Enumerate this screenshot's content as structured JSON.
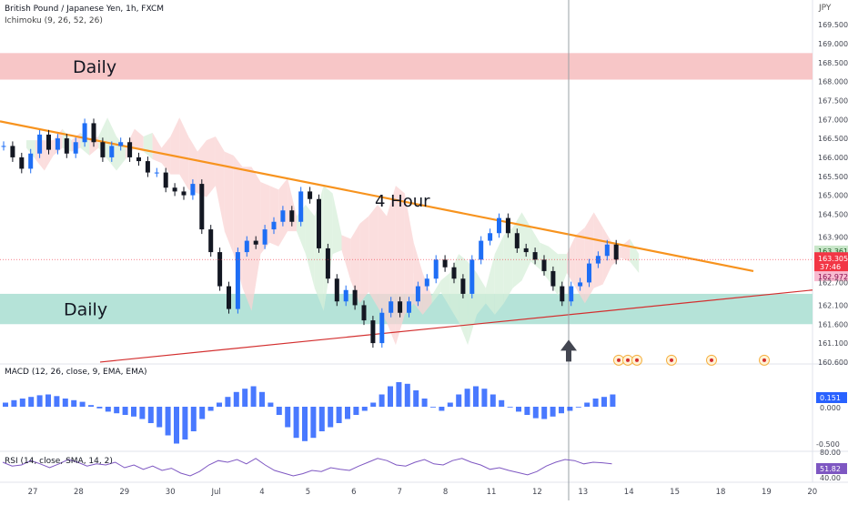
{
  "chart_data": {
    "type": "line",
    "title": "British Pound / Japanese Yen, 1h, FXCM",
    "indicator": "Ichimoku (9, 26, 52, 26)",
    "currency": "JPY",
    "x_ticks": [
      "27",
      "28",
      "29",
      "30",
      "Jul",
      "4",
      "5",
      "6",
      "7",
      "8",
      "11",
      "12",
      "13",
      "14",
      "15",
      "18",
      "19",
      "20"
    ],
    "price_ticks": [
      169.5,
      169.0,
      168.5,
      168.0,
      167.5,
      167.0,
      166.5,
      166.0,
      165.5,
      165.0,
      164.5,
      163.9,
      163.361,
      163.305,
      162.972,
      162.7,
      162.1,
      161.6,
      161.1,
      160.6
    ],
    "price_tick_labels": [
      "169.500",
      "169.000",
      "168.500",
      "168.000",
      "167.500",
      "167.000",
      "166.500",
      "166.000",
      "165.500",
      "165.000",
      "164.500",
      "163.900",
      "163.361",
      "163.305",
      "162.972",
      "162.700",
      "162.100",
      "161.600",
      "161.100",
      "160.600"
    ],
    "last_price": "163.305",
    "countdown": "37:46",
    "ylim": [
      160.55,
      170.15
    ],
    "zones": [
      {
        "label": "Daily",
        "from": 168.05,
        "to": 168.75,
        "color": "#f7c6c7"
      },
      {
        "label": "Daily",
        "from": 161.6,
        "to": 162.4,
        "color": "#b5e3d8"
      }
    ],
    "annotations": {
      "trend_label": "4 Hour"
    },
    "price_series": [
      {
        "x": 0,
        "y": 166.3
      },
      {
        "x": 1,
        "y": 166.0
      },
      {
        "x": 2,
        "y": 165.7
      },
      {
        "x": 3,
        "y": 166.1
      },
      {
        "x": 4,
        "y": 166.6
      },
      {
        "x": 5,
        "y": 166.2
      },
      {
        "x": 6,
        "y": 166.5
      },
      {
        "x": 7,
        "y": 166.1
      },
      {
        "x": 8,
        "y": 166.4
      },
      {
        "x": 9,
        "y": 166.9
      },
      {
        "x": 10,
        "y": 166.4
      },
      {
        "x": 11,
        "y": 166.0
      },
      {
        "x": 12,
        "y": 166.3
      },
      {
        "x": 13,
        "y": 166.4
      },
      {
        "x": 14,
        "y": 166.0
      },
      {
        "x": 15,
        "y": 165.9
      },
      {
        "x": 16,
        "y": 165.6
      },
      {
        "x": 17,
        "y": 165.6
      },
      {
        "x": 18,
        "y": 165.2
      },
      {
        "x": 19,
        "y": 165.1
      },
      {
        "x": 20,
        "y": 165.0
      },
      {
        "x": 21,
        "y": 165.3
      },
      {
        "x": 22,
        "y": 164.1
      },
      {
        "x": 23,
        "y": 163.5
      },
      {
        "x": 24,
        "y": 162.6
      },
      {
        "x": 25,
        "y": 162.0
      },
      {
        "x": 26,
        "y": 163.5
      },
      {
        "x": 27,
        "y": 163.8
      },
      {
        "x": 28,
        "y": 163.7
      },
      {
        "x": 29,
        "y": 164.1
      },
      {
        "x": 30,
        "y": 164.3
      },
      {
        "x": 31,
        "y": 164.6
      },
      {
        "x": 32,
        "y": 164.3
      },
      {
        "x": 33,
        "y": 165.1
      },
      {
        "x": 34,
        "y": 164.9
      },
      {
        "x": 35,
        "y": 163.6
      },
      {
        "x": 36,
        "y": 162.8
      },
      {
        "x": 37,
        "y": 162.2
      },
      {
        "x": 38,
        "y": 162.5
      },
      {
        "x": 39,
        "y": 162.1
      },
      {
        "x": 40,
        "y": 161.7
      },
      {
        "x": 41,
        "y": 161.1
      },
      {
        "x": 42,
        "y": 161.9
      },
      {
        "x": 43,
        "y": 162.2
      },
      {
        "x": 44,
        "y": 161.9
      },
      {
        "x": 45,
        "y": 162.2
      },
      {
        "x": 46,
        "y": 162.6
      },
      {
        "x": 47,
        "y": 162.8
      },
      {
        "x": 48,
        "y": 163.3
      },
      {
        "x": 49,
        "y": 163.1
      },
      {
        "x": 50,
        "y": 162.8
      },
      {
        "x": 51,
        "y": 162.4
      },
      {
        "x": 52,
        "y": 163.3
      },
      {
        "x": 53,
        "y": 163.8
      },
      {
        "x": 54,
        "y": 164.0
      },
      {
        "x": 55,
        "y": 164.4
      },
      {
        "x": 56,
        "y": 164.0
      },
      {
        "x": 57,
        "y": 163.6
      },
      {
        "x": 58,
        "y": 163.5
      },
      {
        "x": 59,
        "y": 163.3
      },
      {
        "x": 60,
        "y": 163.0
      },
      {
        "x": 61,
        "y": 162.6
      },
      {
        "x": 62,
        "y": 162.2
      },
      {
        "x": 63,
        "y": 162.6
      },
      {
        "x": 64,
        "y": 162.7
      },
      {
        "x": 65,
        "y": 163.2
      },
      {
        "x": 66,
        "y": 163.4
      },
      {
        "x": 67,
        "y": 163.7
      },
      {
        "x": 68,
        "y": 163.3
      }
    ],
    "series": [
      {
        "name": "MACD (12, 26, close, 9, EMA, EMA)",
        "last_value": "0.151",
        "ticks": [
          "0.000",
          "-0.500"
        ]
      },
      {
        "name": "RSI (14, close, SMA, 14, 2)",
        "last_value": "51.82",
        "ticks": [
          "80.00",
          "40.00"
        ]
      }
    ],
    "macd_hist": [
      0.05,
      0.08,
      0.1,
      0.12,
      0.14,
      0.15,
      0.13,
      0.1,
      0.08,
      0.06,
      0.02,
      -0.02,
      -0.06,
      -0.08,
      -0.1,
      -0.12,
      -0.15,
      -0.2,
      -0.25,
      -0.35,
      -0.45,
      -0.4,
      -0.3,
      -0.15,
      -0.05,
      0.05,
      0.12,
      0.18,
      0.22,
      0.25,
      0.18,
      0.05,
      -0.1,
      -0.25,
      -0.38,
      -0.42,
      -0.38,
      -0.3,
      -0.25,
      -0.2,
      -0.15,
      -0.1,
      -0.05,
      0.05,
      0.15,
      0.25,
      0.3,
      0.28,
      0.2,
      0.1,
      0.0,
      -0.05,
      0.05,
      0.15,
      0.22,
      0.25,
      0.22,
      0.15,
      0.08,
      0.0,
      -0.06,
      -0.1,
      -0.14,
      -0.15,
      -0.12,
      -0.08,
      -0.05,
      0.0,
      0.05,
      0.1,
      0.12,
      0.15
    ],
    "rsi": [
      55,
      48,
      50,
      58,
      52,
      45,
      52,
      60,
      55,
      48,
      52,
      50,
      55,
      45,
      50,
      42,
      48,
      40,
      44,
      35,
      30,
      38,
      50,
      58,
      55,
      60,
      52,
      62,
      50,
      40,
      35,
      30,
      34,
      40,
      38,
      45,
      42,
      40,
      48,
      55,
      62,
      58,
      50,
      48,
      55,
      60,
      52,
      50,
      58,
      62,
      55,
      50,
      42,
      45,
      40,
      36,
      32,
      38,
      48,
      55,
      60,
      58,
      52,
      55,
      54,
      52
    ]
  },
  "ui": {
    "drawn_trendline_colors": {
      "resistance": "#f7931e",
      "support": "#d32f2f"
    },
    "candle_up_color": "#1e6ef5",
    "candle_down_color": "#131722",
    "cloud_bull_color": "#d7efd9",
    "cloud_bear_color": "#f9d3d3",
    "arrow_icon": "up-arrow-icon",
    "event_icons": [
      "flag-uk-icon",
      "flag-jp-icon",
      "flag-jp-icon",
      "flag-jp-icon",
      "flag-uk-icon"
    ]
  }
}
